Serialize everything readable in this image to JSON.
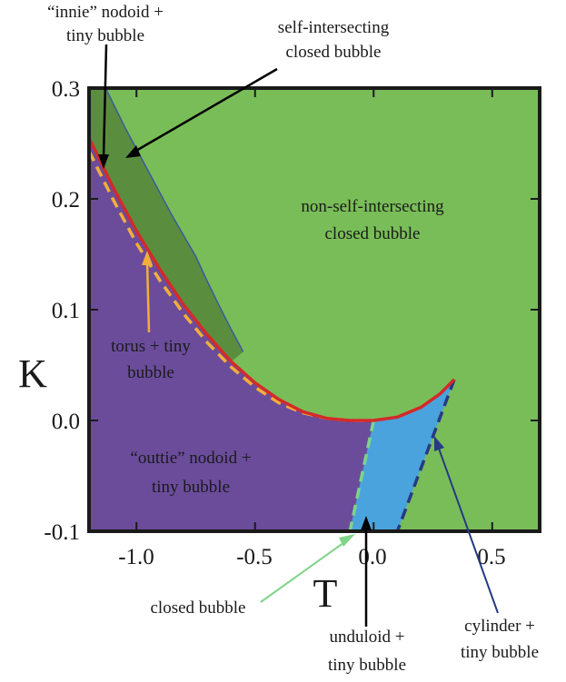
{
  "chart_data": {
    "type": "area",
    "xlabel": "T",
    "ylabel": "K",
    "xlim": [
      -1.2,
      0.7
    ],
    "ylim": [
      -0.1,
      0.3
    ],
    "xticks": [
      "-1.0",
      "-0.5",
      "0.0",
      "0.5"
    ],
    "yticks": [
      "0.3",
      "0.2",
      "0.1",
      "0.0",
      "-0.1"
    ],
    "grid": false,
    "colors": {
      "light_green": "#79bd59",
      "dark_green": "#5a8e3e",
      "purple": "#6b4c9b",
      "blue": "#4aa3dc",
      "red": "#d42a2a",
      "orange": "#f2ae3a",
      "navy": "#273a82",
      "pale_green": "#7fd488",
      "thin_blue": "#3b5a9c",
      "black": "#000000"
    },
    "curves": {
      "red_boundary": [
        [
          -1.2,
          0.255
        ],
        [
          -1.1,
          0.211
        ],
        [
          -1.0,
          0.171
        ],
        [
          -0.9,
          0.136
        ],
        [
          -0.8,
          0.104
        ],
        [
          -0.7,
          0.077
        ],
        [
          -0.6,
          0.053
        ],
        [
          -0.5,
          0.034
        ],
        [
          -0.4,
          0.019
        ],
        [
          -0.3,
          0.008
        ],
        [
          -0.2,
          0.002
        ],
        [
          -0.1,
          0.0
        ],
        [
          -0.05,
          0.0
        ],
        [
          0.0,
          0.0
        ],
        [
          0.1,
          0.003
        ],
        [
          0.2,
          0.012
        ],
        [
          0.28,
          0.024
        ],
        [
          0.34,
          0.037
        ]
      ],
      "orange_dashed": [
        [
          -1.2,
          0.243
        ],
        [
          -1.1,
          0.2
        ],
        [
          -1.0,
          0.16
        ],
        [
          -0.9,
          0.126
        ],
        [
          -0.8,
          0.096
        ],
        [
          -0.7,
          0.07
        ],
        [
          -0.6,
          0.048
        ],
        [
          -0.5,
          0.03
        ],
        [
          -0.4,
          0.016
        ],
        [
          -0.3,
          0.007
        ],
        [
          -0.2,
          0.002
        ],
        [
          -0.1,
          0.0
        ],
        [
          0.0,
          0.0
        ]
      ],
      "self_intersecting_upper": [
        [
          -1.13,
          0.3
        ],
        [
          -1.05,
          0.265
        ],
        [
          -0.95,
          0.225
        ],
        [
          -0.85,
          0.185
        ],
        [
          -0.75,
          0.148
        ],
        [
          -0.7,
          0.125
        ],
        [
          -0.65,
          0.103
        ],
        [
          -0.6,
          0.082
        ],
        [
          -0.55,
          0.062
        ]
      ],
      "pale_green_dashed": [
        [
          0.0,
          0.0
        ],
        [
          -0.1,
          -0.1
        ]
      ],
      "navy_dashed": [
        [
          0.34,
          0.037
        ],
        [
          0.1,
          -0.1
        ]
      ]
    },
    "regions": [
      {
        "label": "non-self-intersecting closed bubble",
        "color": "light_green"
      },
      {
        "label": "self-intersecting closed bubble",
        "color": "dark_green"
      },
      {
        "label": "“outtie” nodoid + tiny bubble",
        "color": "purple"
      },
      {
        "label": "torus + tiny bubble",
        "color": "purple"
      },
      {
        "label": "unduloid + tiny bubble",
        "color": "blue"
      },
      {
        "label": "closed bubble",
        "color": "pale_green"
      },
      {
        "label": "cylinder + tiny bubble",
        "color": "navy"
      },
      {
        "label": "“innie” nodoid + tiny bubble",
        "color": "black"
      }
    ]
  },
  "annotations": {
    "innie": [
      "“innie” nodoid +",
      "tiny bubble"
    ],
    "self_intersecting": [
      "self-intersecting",
      "closed bubble"
    ],
    "non_self_intersecting": [
      "non-self-intersecting",
      "closed bubble"
    ],
    "torus": [
      "torus + tiny",
      "bubble"
    ],
    "outtie": [
      "“outtie” nodoid +",
      "tiny bubble"
    ],
    "closed_bubble": [
      "closed bubble"
    ],
    "unduloid": [
      "unduloid +",
      "tiny bubble"
    ],
    "cylinder": [
      "cylinder +",
      "tiny bubble"
    ]
  }
}
